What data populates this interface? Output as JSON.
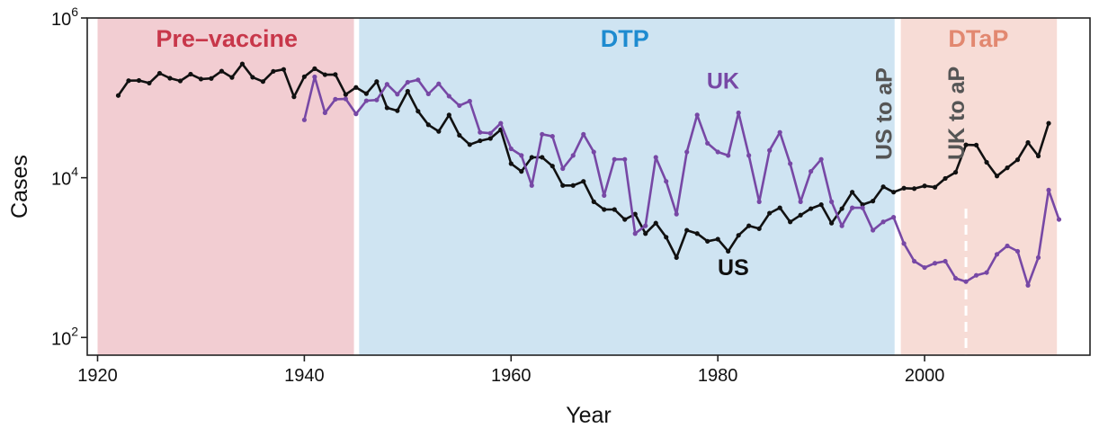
{
  "chart_data": {
    "type": "line",
    "xlabel": "Year",
    "ylabel": "Cases",
    "xlim": [
      1919,
      2016
    ],
    "ylim": [
      60,
      1000000
    ],
    "yscale": "log",
    "x_ticks": [
      1920,
      1940,
      1960,
      1980,
      2000
    ],
    "x_tick_labels": [
      "1920",
      "1940",
      "1960",
      "1980",
      "2000"
    ],
    "y_ticks": [
      {
        "value": 100,
        "base": "10",
        "exp": "2"
      },
      {
        "value": 10000,
        "base": "10",
        "exp": "4"
      },
      {
        "value": 1000000,
        "base": "10",
        "exp": "6"
      }
    ],
    "eras": [
      {
        "label": "Pre–vaccine",
        "start": 1920,
        "end": 1944.8,
        "fill": "#f2cdd2",
        "label_color": "#c8374a",
        "label_x": 1932.5
      },
      {
        "label": "DTP",
        "start": 1945.3,
        "end": 1997.1,
        "fill": "#cfe4f2",
        "label_color": "#1e8bd0",
        "label_x": 1971
      },
      {
        "label": "DTaP",
        "start": 1997.7,
        "end": 2012.8,
        "fill": "#f7dcd6",
        "label_color": "#e28870",
        "label_x": 2005.2
      }
    ],
    "vaccine_switches": [
      {
        "label": "US to aP",
        "year": 1997
      },
      {
        "label": "UK to aP",
        "year": 2004
      }
    ],
    "series": [
      {
        "name": "US",
        "color": "#111111",
        "label_x": 1981.5,
        "label_y": 600,
        "x": [
          1922,
          1923,
          1924,
          1925,
          1926,
          1927,
          1928,
          1929,
          1930,
          1931,
          1932,
          1933,
          1934,
          1935,
          1936,
          1937,
          1938,
          1939,
          1940,
          1941,
          1942,
          1943,
          1944,
          1945,
          1946,
          1947,
          1948,
          1949,
          1950,
          1951,
          1952,
          1953,
          1954,
          1955,
          1956,
          1957,
          1958,
          1959,
          1960,
          1961,
          1962,
          1963,
          1964,
          1965,
          1966,
          1967,
          1968,
          1969,
          1970,
          1971,
          1972,
          1973,
          1974,
          1975,
          1976,
          1977,
          1978,
          1979,
          1980,
          1981,
          1982,
          1983,
          1984,
          1985,
          1986,
          1987,
          1988,
          1989,
          1990,
          1991,
          1992,
          1993,
          1994,
          1995,
          1996,
          1997,
          1998,
          1999,
          2000,
          2001,
          2002,
          2003,
          2004,
          2005,
          2006,
          2007,
          2008,
          2009,
          2010,
          2011,
          2012
        ],
        "values": [
          107000,
          164000,
          165000,
          153000,
          203000,
          176000,
          163000,
          198000,
          172000,
          175000,
          216000,
          180000,
          266000,
          181000,
          160000,
          215000,
          227000,
          103000,
          184000,
          232000,
          195000,
          196000,
          110000,
          135000,
          113000,
          160000,
          75000,
          69000,
          121000,
          68000,
          46000,
          38000,
          61000,
          34000,
          26000,
          29000,
          31000,
          40000,
          15000,
          12000,
          18000,
          18000,
          14000,
          8000,
          8000,
          9000,
          5000,
          4000,
          4000,
          3000,
          3500,
          2000,
          2700,
          1800,
          1000,
          2200,
          2000,
          1600,
          1700,
          1200,
          1900,
          2500,
          2300,
          3600,
          4200,
          2800,
          3400,
          4100,
          4600,
          2700,
          4100,
          6600,
          4600,
          5100,
          7700,
          6600,
          7400,
          7300,
          7900,
          7600,
          9800,
          11700,
          25800,
          25600,
          15600,
          10500,
          13300,
          16800,
          27600,
          18700,
          48000
        ]
      },
      {
        "name": "UK",
        "color": "#7748a5",
        "label_x": 1980.5,
        "label_y": 130000,
        "x": [
          1940,
          1941,
          1942,
          1943,
          1944,
          1945,
          1946,
          1947,
          1948,
          1949,
          1950,
          1951,
          1952,
          1953,
          1954,
          1955,
          1956,
          1957,
          1958,
          1959,
          1960,
          1961,
          1962,
          1963,
          1964,
          1965,
          1966,
          1967,
          1968,
          1969,
          1970,
          1971,
          1972,
          1973,
          1974,
          1975,
          1976,
          1977,
          1978,
          1979,
          1980,
          1981,
          1982,
          1983,
          1984,
          1985,
          1986,
          1987,
          1988,
          1989,
          1990,
          1991,
          1992,
          1993,
          1994,
          1995,
          1996,
          1997,
          1998,
          1999,
          2000,
          2001,
          2002,
          2003,
          2004,
          2005,
          2006,
          2007,
          2008,
          2009,
          2010,
          2011,
          2012,
          2013
        ],
        "values": [
          53000,
          183000,
          65000,
          96000,
          97000,
          63000,
          92000,
          94000,
          148000,
          111000,
          157000,
          168000,
          112000,
          150000,
          105000,
          80000,
          91000,
          37000,
          36000,
          48000,
          23000,
          19000,
          8000,
          35000,
          33000,
          13000,
          19000,
          35000,
          21000,
          6000,
          17000,
          17000,
          2000,
          2500,
          18000,
          9000,
          3500,
          21000,
          61000,
          27000,
          21000,
          19000,
          65000,
          19000,
          5000,
          22000,
          37000,
          15000,
          5000,
          12000,
          17000,
          5000,
          2500,
          4200,
          4200,
          2200,
          2800,
          3200,
          1500,
          900,
          750,
          850,
          900,
          550,
          500,
          600,
          650,
          1100,
          1400,
          1200,
          450,
          1000,
          7000,
          3000
        ]
      }
    ]
  }
}
